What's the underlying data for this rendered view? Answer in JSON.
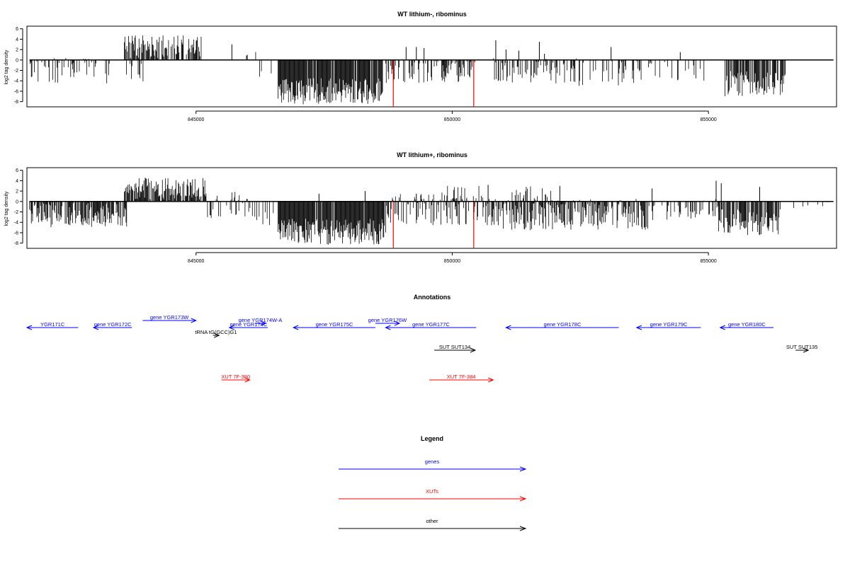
{
  "colors": {
    "gene": "#0000ff",
    "xut": "#ff0000",
    "other": "#000000",
    "bar": "#000000",
    "marker": "#ff0000"
  },
  "chart_data": [
    {
      "type": "bar",
      "title": "WT lithium-, ribominus",
      "ylabel": "log2 tag density",
      "xlim": [
        841700,
        857500
      ],
      "ylim": [
        -9,
        6.5
      ],
      "yticks": [
        6,
        4,
        2,
        0,
        -2,
        -4,
        -6,
        -8
      ],
      "xticks": [
        845000,
        850000,
        855000
      ],
      "markers_x": [
        848850,
        850420
      ],
      "segments": [
        {
          "from": 841750,
          "to": 843200,
          "mean": -2.0,
          "spread": 2.5,
          "density": 0.35
        },
        {
          "from": 843150,
          "to": 844000,
          "mean": -2.5,
          "spread": 2.0,
          "density": 0.15
        },
        {
          "from": 843600,
          "to": 845100,
          "mean": 2.6,
          "spread": 2.2,
          "density": 0.7
        },
        {
          "from": 845600,
          "to": 846200,
          "mean": 1.0,
          "spread": 1.5,
          "density": 0.08
        },
        {
          "from": 846000,
          "to": 846500,
          "mean": -2.0,
          "spread": 2.0,
          "density": 0.1
        },
        {
          "from": 846600,
          "to": 848650,
          "mean": -6.0,
          "spread": 2.5,
          "density": 0.95
        },
        {
          "from": 848700,
          "to": 850450,
          "mean": -2.2,
          "spread": 2.2,
          "density": 0.4
        },
        {
          "from": 850800,
          "to": 852450,
          "mean": -2.0,
          "spread": 2.5,
          "density": 0.45
        },
        {
          "from": 852450,
          "to": 854000,
          "mean": -2.5,
          "spread": 2.5,
          "density": 0.3
        },
        {
          "from": 854000,
          "to": 855000,
          "mean": -2.0,
          "spread": 2.0,
          "density": 0.2
        },
        {
          "from": 855300,
          "to": 856500,
          "mean": -4.5,
          "spread": 2.5,
          "density": 0.75
        }
      ],
      "spikes": [
        {
          "x": 845700,
          "y": 3.0
        },
        {
          "x": 849100,
          "y": 2.5
        },
        {
          "x": 849300,
          "y": 2.5
        },
        {
          "x": 850850,
          "y": 3.8
        },
        {
          "x": 851050,
          "y": 2.0
        },
        {
          "x": 851300,
          "y": 1.8
        },
        {
          "x": 851700,
          "y": 3.5
        },
        {
          "x": 851800,
          "y": 1.2
        },
        {
          "x": 853100,
          "y": 2.5
        },
        {
          "x": 854450,
          "y": 1.5
        },
        {
          "x": 846000,
          "y": 1.0
        },
        {
          "x": 849450,
          "y": 2.3
        }
      ]
    },
    {
      "type": "bar",
      "title": "WT lithium+, ribominus",
      "ylabel": "log2 tag density",
      "xlim": [
        841700,
        857500
      ],
      "ylim": [
        -9,
        6.5
      ],
      "yticks": [
        6,
        4,
        2,
        0,
        -2,
        -4,
        -6,
        -8
      ],
      "xticks": [
        845000,
        850000,
        855000
      ],
      "markers_x": [
        848850,
        850420
      ],
      "segments": [
        {
          "from": 841750,
          "to": 843650,
          "mean": -2.5,
          "spread": 2.5,
          "density": 0.75
        },
        {
          "from": 843600,
          "to": 845200,
          "mean": 2.4,
          "spread": 2.2,
          "density": 0.8
        },
        {
          "from": 845200,
          "to": 846100,
          "mean": -1.5,
          "spread": 2.0,
          "density": 0.3
        },
        {
          "from": 845400,
          "to": 846000,
          "mean": 0.8,
          "spread": 1.2,
          "density": 0.15
        },
        {
          "from": 846100,
          "to": 846600,
          "mean": -2.5,
          "spread": 2.5,
          "density": 0.3
        },
        {
          "from": 846600,
          "to": 848700,
          "mean": -5.8,
          "spread": 2.5,
          "density": 0.95
        },
        {
          "from": 848700,
          "to": 850500,
          "mean": -1.5,
          "spread": 3.0,
          "density": 0.55
        },
        {
          "from": 849800,
          "to": 850600,
          "mean": 1.5,
          "spread": 1.5,
          "density": 0.4
        },
        {
          "from": 850600,
          "to": 854000,
          "mean": -2.5,
          "spread": 3.0,
          "density": 0.7
        },
        {
          "from": 851000,
          "to": 852000,
          "mean": 1.5,
          "spread": 1.5,
          "density": 0.3
        },
        {
          "from": 854000,
          "to": 855200,
          "mean": -1.5,
          "spread": 2.0,
          "density": 0.35
        },
        {
          "from": 855200,
          "to": 856400,
          "mean": -4.0,
          "spread": 2.5,
          "density": 0.75
        },
        {
          "from": 856400,
          "to": 857400,
          "mean": -0.8,
          "spread": 0.8,
          "density": 0.15
        }
      ],
      "spikes": [
        {
          "x": 847400,
          "y": 1.5
        },
        {
          "x": 848300,
          "y": 2.0
        },
        {
          "x": 849300,
          "y": 1.5
        },
        {
          "x": 853900,
          "y": 2.5
        },
        {
          "x": 855150,
          "y": 4.0
        },
        {
          "x": 855250,
          "y": 3.5
        },
        {
          "x": 856000,
          "y": 2.8
        },
        {
          "x": 852100,
          "y": 3.0
        },
        {
          "x": 850700,
          "y": 3.2
        }
      ]
    }
  ],
  "annotations": {
    "title": "Annotations",
    "items": [
      {
        "label": "YGR171C",
        "kind": "gene",
        "strand": "-",
        "start": 841700,
        "end": 842700,
        "row": 2
      },
      {
        "label": "gene YGR172C",
        "kind": "gene",
        "strand": "-",
        "start": 843000,
        "end": 843750,
        "row": 2
      },
      {
        "label": "gene YGR173W",
        "kind": "gene",
        "strand": "+",
        "start": 843960,
        "end": 845000,
        "row": 0
      },
      {
        "label": "gene YGR174W-A",
        "kind": "gene",
        "strand": "+",
        "start": 846150,
        "end": 846360,
        "row": 1
      },
      {
        "label": "gene YGR174C",
        "kind": "gene",
        "strand": "-",
        "start": 845650,
        "end": 846400,
        "row": 2
      },
      {
        "label": "tRNA tG(GCC)G1",
        "kind": "other",
        "strand": "+",
        "start": 845330,
        "end": 845450,
        "row": 3
      },
      {
        "label": "gene YGR175C",
        "kind": "gene",
        "strand": "-",
        "start": 846900,
        "end": 848500,
        "row": 2
      },
      {
        "label": "gene YGR176W",
        "kind": "gene",
        "strand": "+",
        "start": 848500,
        "end": 848970,
        "row": 1
      },
      {
        "label": "gene YGR177C",
        "kind": "gene",
        "strand": "-",
        "start": 848700,
        "end": 850470,
        "row": 2
      },
      {
        "label": "gene YGR178C",
        "kind": "gene",
        "strand": "-",
        "start": 851050,
        "end": 853250,
        "row": 2
      },
      {
        "label": "gene YGR179C",
        "kind": "gene",
        "strand": "-",
        "start": 853600,
        "end": 854850,
        "row": 2
      },
      {
        "label": "gene YGR180C",
        "kind": "gene",
        "strand": "-",
        "start": 855230,
        "end": 856270,
        "row": 2
      },
      {
        "label": "SUT SUT134",
        "kind": "other",
        "strand": "+",
        "start": 849650,
        "end": 850450,
        "row": 4
      },
      {
        "label": "SUT SUT135",
        "kind": "other",
        "strand": "+",
        "start": 856700,
        "end": 856950,
        "row": 4
      },
      {
        "label": "XUT 7F-380",
        "kind": "xut",
        "strand": "+",
        "start": 845500,
        "end": 846050,
        "row": 5
      },
      {
        "label": "XUT 7F-384",
        "kind": "xut",
        "strand": "+",
        "start": 849550,
        "end": 850800,
        "row": 5
      }
    ]
  },
  "legend": {
    "title": "Legend",
    "items": [
      {
        "label": "genes",
        "kind": "gene"
      },
      {
        "label": "XUTs",
        "kind": "xut"
      },
      {
        "label": "other",
        "kind": "other"
      }
    ]
  }
}
